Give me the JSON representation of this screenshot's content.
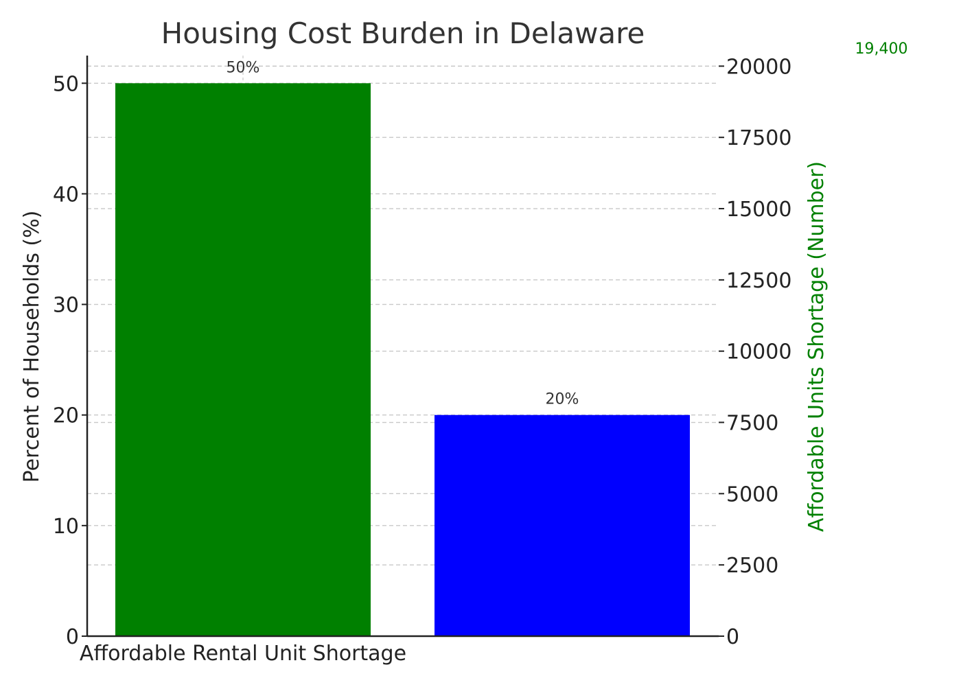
{
  "chart_data": {
    "type": "bar",
    "title": "Housing Cost Burden in Delaware",
    "categories": [
      "Affordable Rental Unit Shortage",
      ""
    ],
    "values": [
      50,
      20
    ],
    "bar_colors": [
      "#008000",
      "#0000ff"
    ],
    "value_labels": [
      "50%",
      "20%"
    ],
    "ylabel": "Percent of Households (%)",
    "ylim": [
      0,
      52.5
    ],
    "y_ticks": [
      0,
      10,
      20,
      30,
      40,
      50
    ],
    "secondary_axis": {
      "ylabel": "Affordable Units Shortage (Number)",
      "color": "#008000",
      "ylim": [
        0,
        20370
      ],
      "ticks": [
        0,
        2500,
        5000,
        7500,
        10000,
        12500,
        15000,
        17500,
        20000
      ],
      "series": [
        {
          "name": "Affordable Units Shortage",
          "x_index": 0,
          "value": 19400,
          "label": "19,400"
        }
      ]
    },
    "grid": true,
    "legend": "none"
  }
}
